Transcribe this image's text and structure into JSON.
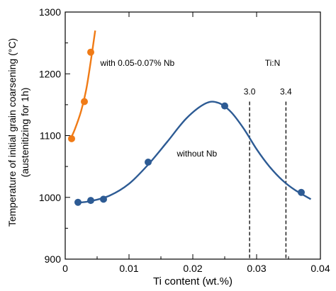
{
  "chart_data": {
    "type": "scatter",
    "title": "",
    "xlabel": "Ti content (wt.%)",
    "ylabel_line1": "Temperature of initial grain coarsening (°C)",
    "ylabel_line2": "(austenitizing for 1h)",
    "xlim": [
      0,
      0.04
    ],
    "ylim": [
      900,
      1300
    ],
    "x_ticks": [
      0,
      0.01,
      0.02,
      0.03,
      0.04
    ],
    "x_tick_labels": [
      "0",
      "0.01",
      "0.02",
      "0.03",
      "0.04"
    ],
    "y_ticks": [
      900,
      1000,
      1100,
      1200,
      1300
    ],
    "y_tick_labels": [
      "900",
      "1000",
      "1100",
      "1200",
      "1300"
    ],
    "series": [
      {
        "name": "with 0.05-0.07% Nb",
        "color": "#f07b16",
        "points": [
          {
            "x": 0.001,
            "y": 1095
          },
          {
            "x": 0.003,
            "y": 1155
          },
          {
            "x": 0.004,
            "y": 1235
          }
        ],
        "curve": [
          {
            "x": 0.0007,
            "y": 1092
          },
          {
            "x": 0.0015,
            "y": 1110
          },
          {
            "x": 0.0025,
            "y": 1140
          },
          {
            "x": 0.0033,
            "y": 1175
          },
          {
            "x": 0.004,
            "y": 1220
          },
          {
            "x": 0.0047,
            "y": 1270
          }
        ]
      },
      {
        "name": "without Nb",
        "color": "#2d5b94",
        "points": [
          {
            "x": 0.002,
            "y": 992
          },
          {
            "x": 0.004,
            "y": 995
          },
          {
            "x": 0.006,
            "y": 997
          },
          {
            "x": 0.013,
            "y": 1057
          },
          {
            "x": 0.025,
            "y": 1148
          },
          {
            "x": 0.037,
            "y": 1008
          }
        ],
        "curve": [
          {
            "x": 0.0015,
            "y": 991
          },
          {
            "x": 0.004,
            "y": 994
          },
          {
            "x": 0.007,
            "y": 1003
          },
          {
            "x": 0.01,
            "y": 1022
          },
          {
            "x": 0.013,
            "y": 1053
          },
          {
            "x": 0.016,
            "y": 1090
          },
          {
            "x": 0.019,
            "y": 1128
          },
          {
            "x": 0.022,
            "y": 1152
          },
          {
            "x": 0.024,
            "y": 1153
          },
          {
            "x": 0.026,
            "y": 1138
          },
          {
            "x": 0.028,
            "y": 1111
          },
          {
            "x": 0.03,
            "y": 1078
          },
          {
            "x": 0.032,
            "y": 1050
          },
          {
            "x": 0.034,
            "y": 1028
          },
          {
            "x": 0.036,
            "y": 1012
          },
          {
            "x": 0.0385,
            "y": 997
          }
        ]
      }
    ],
    "reference_lines": [
      {
        "label": "3.0",
        "x": 0.0289,
        "y_top": 1155
      },
      {
        "label": "3.4",
        "x": 0.0346,
        "y_top": 1155
      }
    ],
    "annotations": [
      {
        "text": "with 0.05-0.07% Nb",
        "x": 0.0055,
        "y": 1213
      },
      {
        "text": "without Nb",
        "x": 0.0175,
        "y": 1066
      },
      {
        "text": "Ti:N",
        "x": 0.0325,
        "y": 1213
      }
    ]
  }
}
